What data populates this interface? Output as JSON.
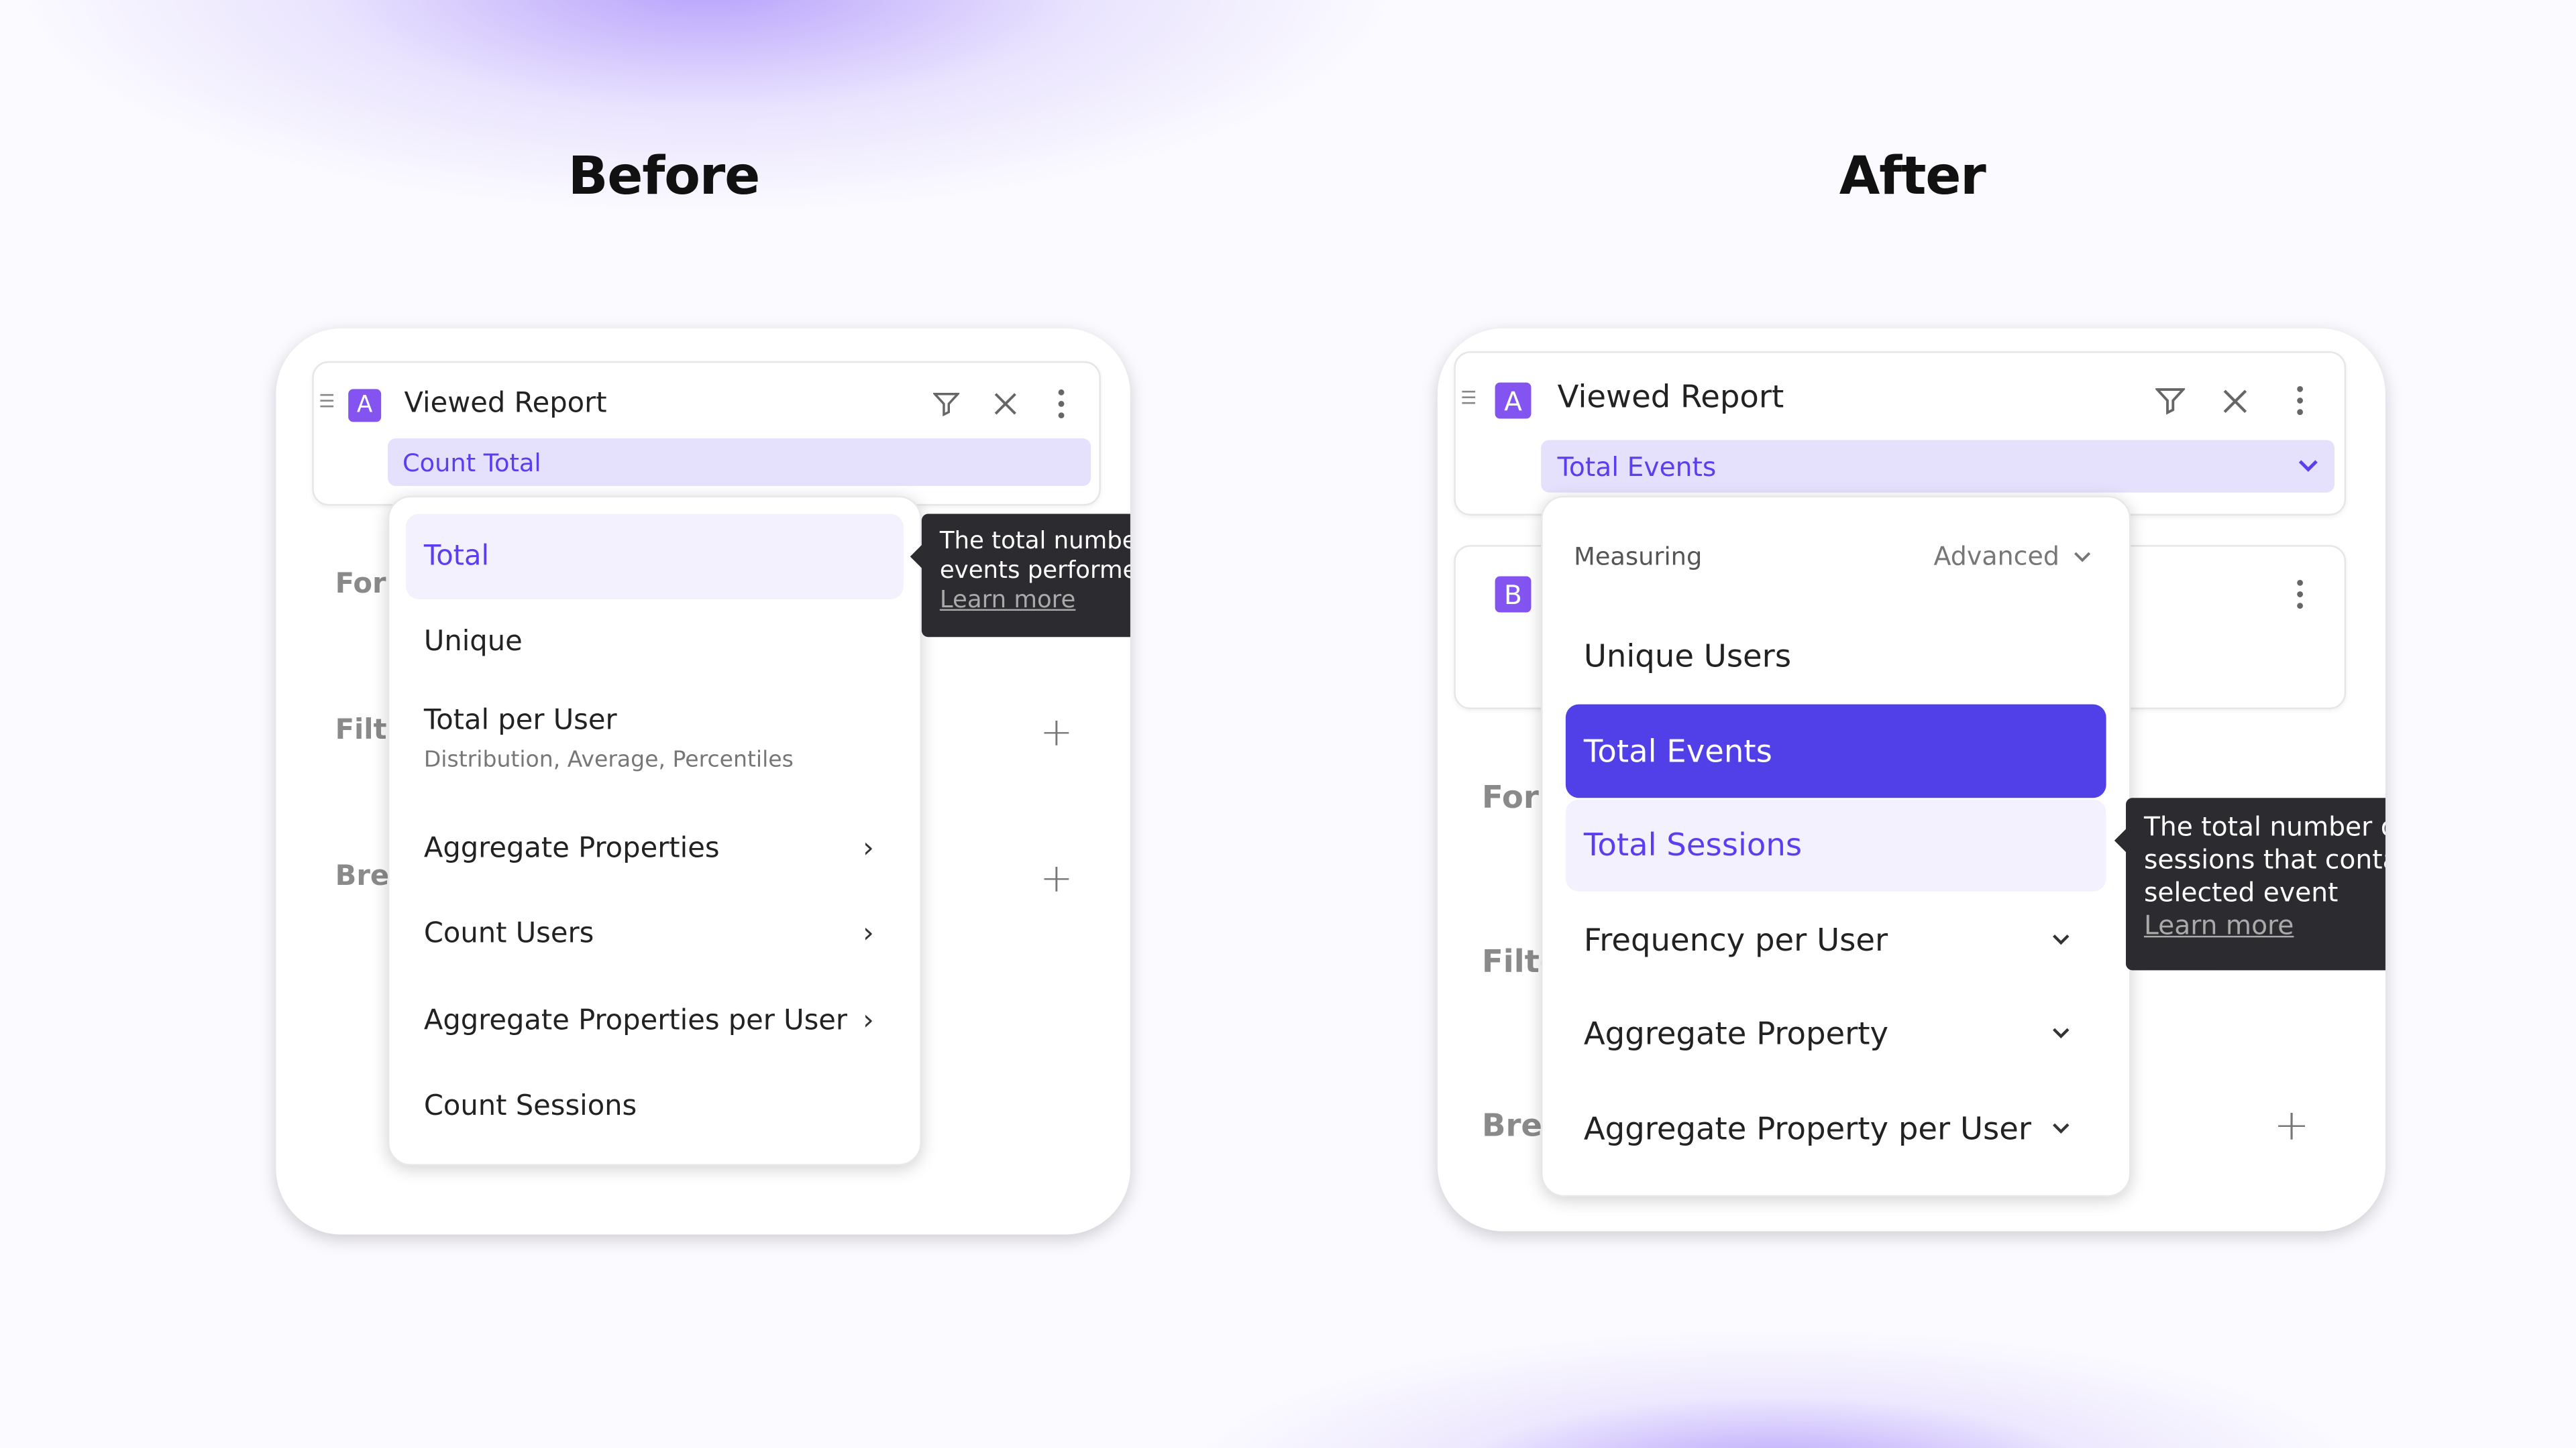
{
  "before": {
    "heading": "Before",
    "event": {
      "badge": "A",
      "title": "Viewed Report",
      "measure": "Count Total"
    },
    "bg_labels": [
      "Forr",
      "Filte",
      "Brea"
    ],
    "menu": [
      {
        "label": "Total",
        "state": "hover"
      },
      {
        "label": "Unique"
      },
      {
        "label": "Total per User",
        "sub": "Distribution, Average, Percentiles"
      },
      {
        "label": "Aggregate Properties",
        "submenu": true
      },
      {
        "label": "Count Users",
        "submenu": true
      },
      {
        "label": "Aggregate Properties per User",
        "submenu": true
      },
      {
        "label": "Count Sessions"
      }
    ],
    "tooltip": {
      "lines": [
        "The total number",
        "events performed"
      ],
      "link": "Learn more"
    }
  },
  "after": {
    "heading": "After",
    "event_a": {
      "badge": "A",
      "title": "Viewed Report",
      "measure": "Total Events"
    },
    "event_b": {
      "badge": "B"
    },
    "bg_labels": [
      "Forr",
      "Filte",
      "Brea"
    ],
    "menu_header": {
      "label": "Measuring",
      "mode": "Advanced"
    },
    "menu": [
      {
        "label": "Unique Users"
      },
      {
        "label": "Total Events",
        "state": "selected"
      },
      {
        "label": "Total Sessions",
        "state": "hover"
      },
      {
        "label": "Frequency per User",
        "expandable": true
      },
      {
        "label": "Aggregate Property",
        "expandable": true
      },
      {
        "label": "Aggregate Property per User",
        "expandable": true
      }
    ],
    "tooltip": {
      "lines": [
        "The total number o",
        "sessions that conta",
        "selected event"
      ],
      "link": "Learn more"
    }
  },
  "colors": {
    "accent": "#5140e8",
    "badge": "#8454f0",
    "chip_bg": "#e5e0fc",
    "hover_bg": "#f3f1fe",
    "tooltip_bg": "#2b2b30"
  }
}
